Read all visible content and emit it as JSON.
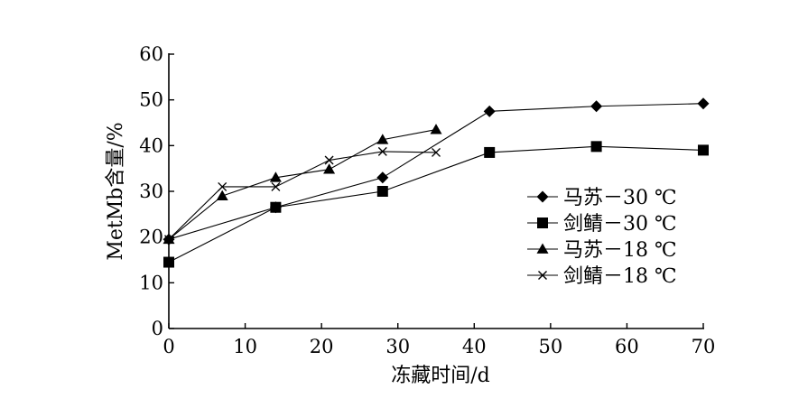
{
  "chart_data": {
    "type": "line",
    "xlabel": "冻藏时间/d",
    "ylabel": "MetMb含量/%",
    "xlim": [
      0,
      70
    ],
    "ylim": [
      0,
      60
    ],
    "xticks": [
      "0",
      "10",
      "20",
      "30",
      "40",
      "50",
      "60",
      "70"
    ],
    "yticks": [
      "0",
      "10",
      "20",
      "30",
      "40",
      "50",
      "60"
    ],
    "grid": false,
    "legend_position": "right",
    "series": [
      {
        "name": "马苏－30 ℃",
        "marker": "diamond",
        "x": [
          0,
          14,
          28,
          42,
          56,
          70
        ],
        "y": [
          19.5,
          26.5,
          33,
          47.5,
          48.6,
          49.2
        ]
      },
      {
        "name": "剑鲭－30 ℃",
        "marker": "square",
        "x": [
          0,
          14,
          28,
          42,
          56,
          70
        ],
        "y": [
          14.5,
          26.5,
          30,
          38.5,
          39.8,
          39
        ]
      },
      {
        "name": "马苏－18 ℃",
        "marker": "triangle",
        "x": [
          0,
          7,
          14,
          21,
          28,
          35
        ],
        "y": [
          19.5,
          29,
          33,
          34.8,
          41.3,
          43.5
        ]
      },
      {
        "name": "剑鲭－18 ℃",
        "marker": "x",
        "x": [
          0,
          7,
          14,
          21,
          28,
          35
        ],
        "y": [
          19.5,
          31,
          31,
          36.8,
          38.7,
          38.5
        ]
      }
    ]
  }
}
